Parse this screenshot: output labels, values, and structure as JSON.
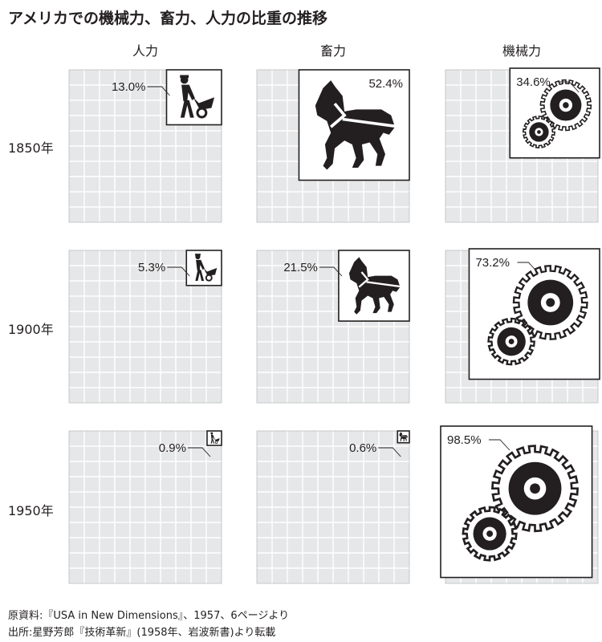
{
  "title": "アメリカでの機械力、畜力、人力の比重の推移",
  "chart_data": {
    "type": "table",
    "columns": [
      "人力",
      "畜力",
      "機械力"
    ],
    "column_icons": [
      "wheelbarrow-worker-icon",
      "horse-icon",
      "gear-icon"
    ],
    "rows": [
      "1850年",
      "1900年",
      "1950年"
    ],
    "values": [
      [
        13.0,
        52.4,
        34.6
      ],
      [
        5.3,
        21.5,
        73.2
      ],
      [
        0.9,
        0.6,
        98.5
      ]
    ],
    "labels": [
      [
        "13.0%",
        "52.4%",
        "34.6%"
      ],
      [
        "5.3%",
        "21.5%",
        "73.2%"
      ],
      [
        "0.9%",
        "0.6%",
        "98.5%"
      ]
    ],
    "unit": "%",
    "colors": {
      "grid_fill": "#e6e7e8",
      "grid_line": "#ffffff",
      "ink": "#231f20",
      "box_fill": "#ffffff"
    }
  },
  "source": {
    "line1": "原資料:『USA in New Dimensions』、1957、6ページより",
    "line2": "出所:星野芳郎『技術革新』(1958年、岩波新書)より転載"
  }
}
